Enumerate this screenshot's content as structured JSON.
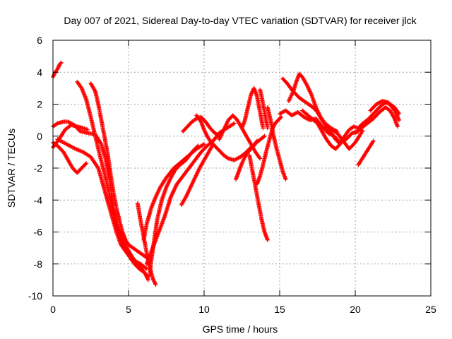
{
  "chart_data": {
    "type": "scatter",
    "title": "Day 007 of 2021, Sidereal Day-to-day VTEC variation (SDTVAR) for receiver jlck",
    "xlabel": "GPS time / hours",
    "ylabel": "SDTVAR / TECUs",
    "xlim": [
      0,
      25
    ],
    "ylim": [
      -10,
      6
    ],
    "xticks": [
      "0",
      "5",
      "10",
      "15",
      "20",
      "25"
    ],
    "yticks": [
      "-10",
      "-8",
      "-6",
      "-4",
      "-2",
      "0",
      "2",
      "4",
      "6"
    ],
    "grid": true,
    "marker": "+",
    "series_color": "#ff0000",
    "series": [
      {
        "x": [
          0.0,
          0.15,
          0.3,
          0.45,
          0.55
        ],
        "y": [
          3.7,
          4.0,
          4.2,
          4.5,
          4.6
        ]
      },
      {
        "x": [
          0.0,
          0.3,
          0.7,
          1.0,
          1.4,
          1.8,
          2.3,
          2.8,
          3.2,
          3.5,
          3.8,
          4.0,
          4.2,
          4.5,
          4.8,
          5.1,
          5.4,
          5.8,
          6.2
        ],
        "y": [
          0.6,
          0.8,
          0.9,
          0.9,
          0.7,
          0.3,
          0.2,
          0.1,
          -0.5,
          -1.5,
          -3.0,
          -4.5,
          -5.5,
          -6.3,
          -7.0,
          -7.5,
          -7.8,
          -8.0,
          -8.3
        ]
      },
      {
        "x": [
          0.0,
          0.4,
          0.8,
          1.2,
          1.6,
          2.0,
          2.3
        ],
        "y": [
          -0.7,
          -0.2,
          0.4,
          0.7,
          0.6,
          0.5,
          0.4
        ]
      },
      {
        "x": [
          0.0,
          0.3,
          0.7,
          1.0,
          1.3,
          1.6,
          1.9,
          2.2
        ],
        "y": [
          -0.4,
          -0.6,
          -1.0,
          -1.5,
          -2.0,
          -2.3,
          -2.0,
          -1.7
        ]
      },
      {
        "x": [
          0.3,
          0.7,
          1.1,
          1.5,
          2.0,
          2.5,
          3.0,
          3.3,
          3.6,
          3.9,
          4.2,
          4.5,
          4.8,
          5.1,
          5.4,
          5.7,
          6.0,
          6.3
        ],
        "y": [
          -0.2,
          -0.4,
          -0.6,
          -0.8,
          -1.0,
          -1.3,
          -2.0,
          -3.0,
          -4.0,
          -5.0,
          -6.0,
          -6.8,
          -7.2,
          -7.6,
          -8.0,
          -8.3,
          -8.5,
          -8.8
        ]
      },
      {
        "x": [
          1.6,
          1.9,
          2.2,
          2.5,
          2.8,
          3.1,
          3.4,
          3.7,
          4.0,
          4.3,
          4.6,
          4.9,
          5.2,
          5.5,
          5.8,
          6.1,
          6.3
        ],
        "y": [
          3.4,
          3.0,
          2.3,
          1.2,
          0.0,
          -1.2,
          -2.3,
          -3.5,
          -4.8,
          -5.8,
          -6.5,
          -7.0,
          -7.5,
          -7.9,
          -8.2,
          -8.6,
          -9.0
        ]
      },
      {
        "x": [
          2.5,
          2.8,
          3.0,
          3.2,
          3.4,
          3.6,
          3.8,
          4.0,
          4.2,
          4.4,
          4.6,
          4.8,
          5.0,
          5.3,
          5.6,
          5.9,
          6.2
        ],
        "y": [
          3.3,
          2.8,
          2.0,
          1.0,
          0.0,
          -1.0,
          -2.3,
          -3.5,
          -4.5,
          -5.3,
          -6.0,
          -6.5,
          -6.8,
          -7.0,
          -7.2,
          -7.4,
          -7.6
        ]
      },
      {
        "x": [
          5.6,
          5.8,
          6.0,
          6.2,
          6.4,
          6.6,
          6.8
        ],
        "y": [
          -4.2,
          -5.3,
          -6.3,
          -7.3,
          -8.2,
          -8.9,
          -9.3
        ]
      },
      {
        "x": [
          6.4,
          6.5,
          6.7,
          6.9,
          7.2,
          7.5,
          7.8,
          8.1,
          8.4,
          8.8,
          9.2,
          9.6
        ],
        "y": [
          -8.7,
          -7.8,
          -6.5,
          -5.2,
          -4.0,
          -3.2,
          -2.6,
          -2.1,
          -1.8,
          -1.5,
          -1.0,
          -0.6
        ]
      },
      {
        "x": [
          6.0,
          6.2,
          6.5,
          6.8,
          7.1,
          7.5,
          8.0,
          8.5,
          9.0,
          9.5,
          10.0
        ],
        "y": [
          -6.5,
          -5.5,
          -4.5,
          -3.8,
          -3.2,
          -2.6,
          -2.0,
          -1.6,
          -1.2,
          -0.8,
          -0.5
        ]
      },
      {
        "x": [
          6.2,
          6.6,
          7.0,
          7.4,
          7.8,
          8.2,
          8.6,
          9.0,
          9.4,
          9.8,
          10.2,
          10.6,
          11.0,
          11.5,
          12.0
        ],
        "y": [
          -8.0,
          -7.0,
          -6.0,
          -5.0,
          -3.8,
          -3.0,
          -2.5,
          -2.0,
          -1.5,
          -1.0,
          -0.6,
          -0.3,
          0.2,
          0.5,
          0.8
        ]
      },
      {
        "x": [
          8.5,
          8.8,
          9.1,
          9.4,
          9.7,
          10.0,
          10.3,
          10.6
        ],
        "y": [
          -4.3,
          -3.8,
          -3.2,
          -2.6,
          -2.0,
          -1.5,
          -1.0,
          -0.5
        ]
      },
      {
        "x": [
          8.6,
          8.9,
          9.2,
          9.5,
          9.8,
          10.1,
          10.4,
          10.7,
          11.0
        ],
        "y": [
          0.3,
          0.6,
          0.9,
          1.1,
          1.2,
          0.9,
          0.5,
          0.2,
          0.0
        ]
      },
      {
        "x": [
          9.5,
          9.8,
          10.0,
          10.2,
          10.4,
          10.7,
          11.0,
          11.3,
          11.6,
          12.0,
          12.4,
          12.8,
          13.2,
          13.6,
          14.0
        ],
        "y": [
          1.3,
          0.9,
          0.4,
          0.0,
          -0.3,
          -0.6,
          -0.9,
          -1.2,
          -1.4,
          -1.5,
          -1.3,
          -1.0,
          -0.6,
          -0.3,
          0.0
        ]
      },
      {
        "x": [
          11.0,
          11.3,
          11.6,
          11.9,
          12.2,
          12.5,
          12.8,
          13.1,
          13.4,
          13.7
        ],
        "y": [
          -0.2,
          0.4,
          1.0,
          1.3,
          1.0,
          0.5,
          0.0,
          -0.5,
          -1.0,
          -1.4
        ]
      },
      {
        "x": [
          12.5,
          12.7,
          12.9,
          13.1,
          13.3,
          13.5,
          13.7,
          13.9
        ],
        "y": [
          0.5,
          1.0,
          1.8,
          2.6,
          3.0,
          2.5,
          1.5,
          0.5
        ]
      },
      {
        "x": [
          12.1,
          12.3,
          12.5,
          12.7,
          12.9,
          13.1,
          13.3,
          13.5
        ],
        "y": [
          -2.7,
          -2.2,
          -1.7,
          -1.3,
          -1.0,
          -0.8,
          -0.6,
          -0.3
        ]
      },
      {
        "x": [
          13.0,
          13.2,
          13.4,
          13.6,
          13.8,
          14.0,
          14.2
        ],
        "y": [
          -1.2,
          -2.2,
          -3.2,
          -4.2,
          -5.2,
          -6.0,
          -6.5
        ]
      },
      {
        "x": [
          13.7,
          13.8,
          13.9,
          14.0,
          14.1,
          14.2
        ],
        "y": [
          2.9,
          2.5,
          2.0,
          1.5,
          1.0,
          0.5
        ]
      },
      {
        "x": [
          13.5,
          13.7,
          13.9,
          14.1,
          14.3,
          14.5,
          14.7,
          14.9,
          15.1
        ],
        "y": [
          -3.0,
          -2.5,
          -1.8,
          -1.0,
          -0.3,
          0.4,
          0.8,
          1.0,
          1.2
        ]
      },
      {
        "x": [
          14.2,
          14.4,
          14.6,
          14.8,
          15.0,
          15.2,
          15.4
        ],
        "y": [
          1.8,
          1.0,
          0.0,
          -0.8,
          -1.5,
          -2.2,
          -2.7
        ]
      },
      {
        "x": [
          15.2,
          15.5,
          15.8,
          16.1,
          16.3,
          16.6,
          16.9,
          17.2,
          17.5,
          17.8,
          18.1,
          18.4,
          18.7,
          19.0
        ],
        "y": [
          3.6,
          3.3,
          2.9,
          2.6,
          2.4,
          2.2,
          2.0,
          1.8,
          1.5,
          1.0,
          0.6,
          0.2,
          -0.2,
          -0.5
        ]
      },
      {
        "x": [
          15.6,
          15.9,
          16.1,
          16.3,
          16.5,
          16.8,
          17.1,
          17.4,
          17.7,
          18.0,
          18.4,
          18.8
        ],
        "y": [
          2.2,
          2.8,
          3.4,
          3.9,
          3.7,
          3.2,
          2.6,
          1.8,
          1.2,
          0.8,
          0.5,
          0.3
        ]
      },
      {
        "x": [
          15.0,
          15.4,
          15.8,
          16.2,
          16.6,
          17.0,
          17.4,
          17.8,
          18.2,
          18.6,
          19.0,
          19.4,
          19.8,
          20.2
        ],
        "y": [
          1.4,
          1.6,
          1.3,
          1.5,
          1.2,
          1.0,
          1.1,
          0.6,
          0.2,
          0.0,
          -0.4,
          -0.2,
          0.2,
          0.3
        ]
      },
      {
        "x": [
          16.5,
          17.0,
          17.5,
          17.8,
          18.1,
          18.4,
          18.7,
          19.0,
          19.3,
          19.6,
          19.9,
          20.2,
          20.5
        ],
        "y": [
          1.6,
          1.2,
          0.8,
          0.3,
          -0.2,
          -0.6,
          -0.8,
          -0.5,
          0.0,
          0.4,
          0.6,
          0.5,
          0.3
        ]
      },
      {
        "x": [
          18.0,
          18.4,
          18.8,
          19.2,
          19.6,
          20.0,
          20.4
        ],
        "y": [
          0.6,
          0.4,
          0.2,
          -0.3,
          -0.8,
          -0.4,
          0.2
        ]
      },
      {
        "x": [
          20.2,
          20.4,
          20.6,
          20.8,
          21.0,
          21.2
        ],
        "y": [
          -1.8,
          -1.5,
          -1.2,
          -0.9,
          -0.6,
          -0.3
        ]
      },
      {
        "x": [
          20.2,
          20.5,
          20.8,
          21.1,
          21.4,
          21.7,
          22.0,
          22.3,
          22.6,
          22.9
        ],
        "y": [
          0.5,
          0.8,
          1.0,
          1.3,
          1.6,
          1.9,
          2.1,
          2.0,
          1.8,
          1.4
        ]
      },
      {
        "x": [
          20.0,
          20.4,
          20.8,
          21.2,
          21.6,
          22.0,
          22.3,
          22.6,
          22.8
        ],
        "y": [
          0.2,
          0.5,
          0.8,
          1.1,
          1.5,
          1.8,
          1.6,
          1.1,
          0.6
        ]
      },
      {
        "x": [
          21.0,
          21.4,
          21.8,
          22.2,
          22.6,
          22.9
        ],
        "y": [
          1.6,
          2.0,
          2.2,
          2.1,
          1.6,
          1.0
        ]
      }
    ]
  }
}
